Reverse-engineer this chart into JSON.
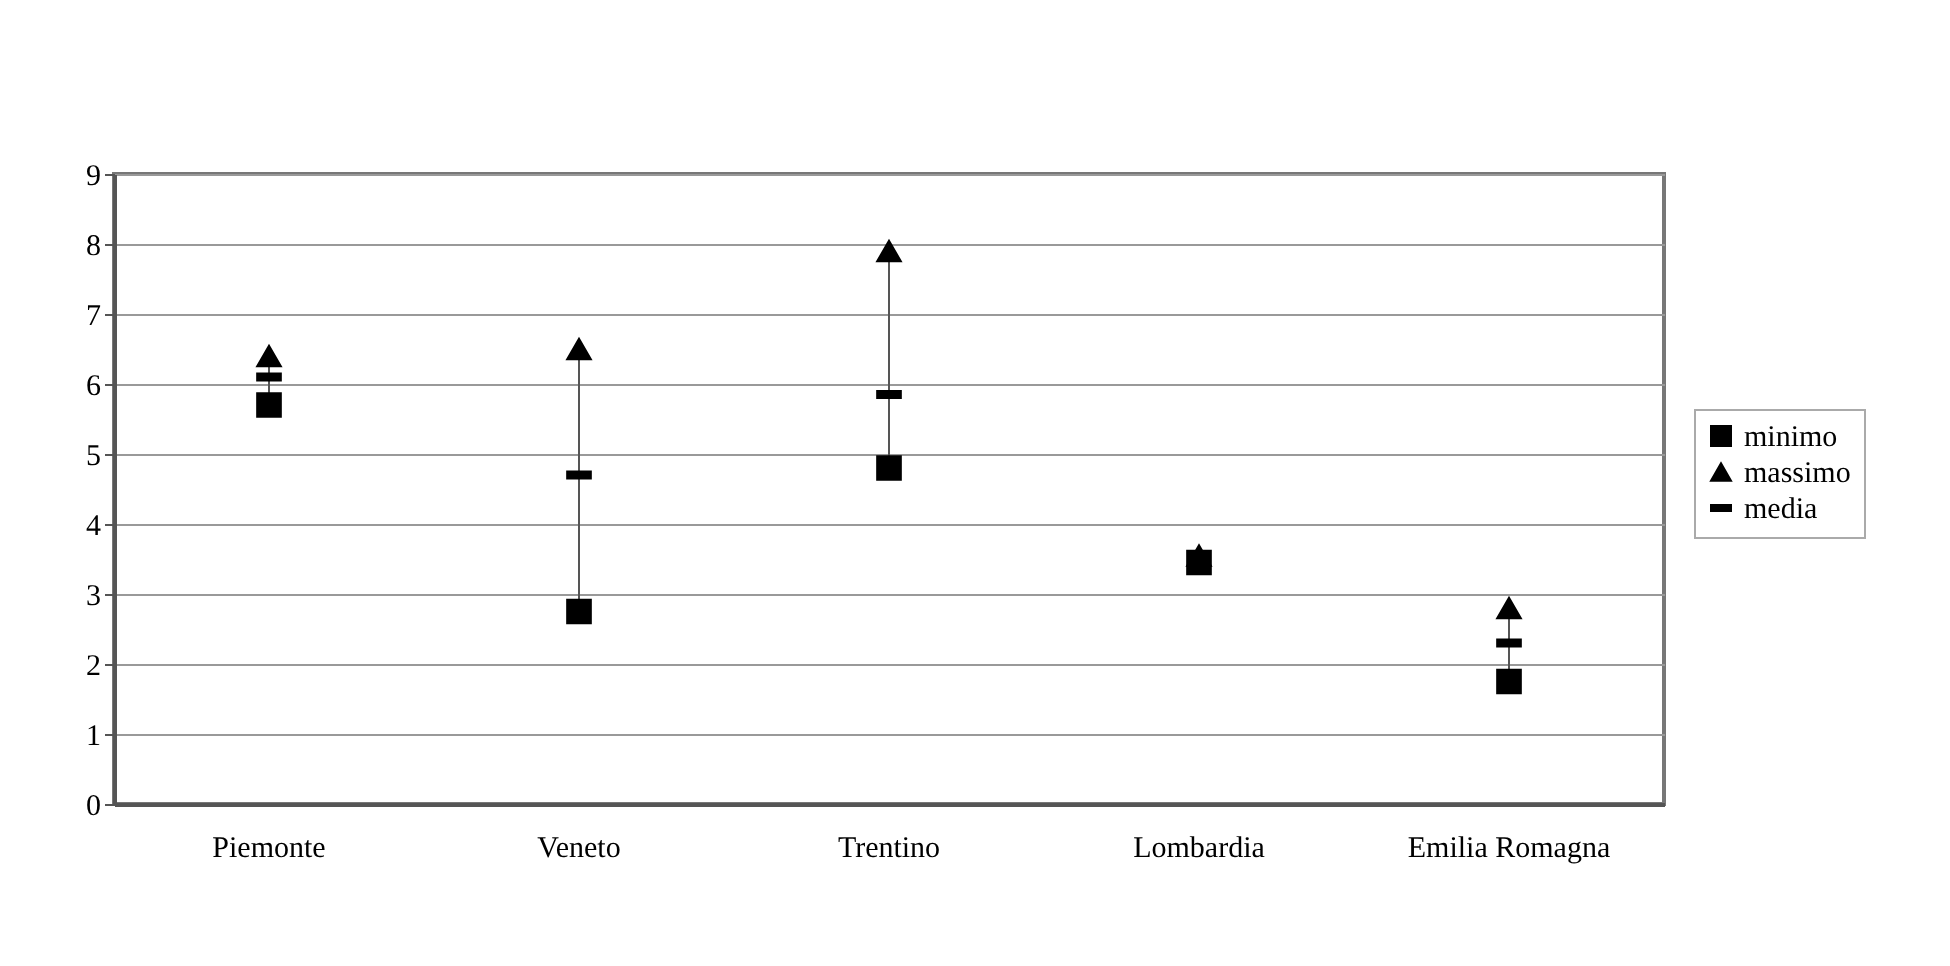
{
  "chart_data": {
    "type": "scatter",
    "categories": [
      "Piemonte",
      "Veneto",
      "Trentino",
      "Lombardia",
      "Emilia Romagna"
    ],
    "series": [
      {
        "name": "minimo",
        "color": "#000000",
        "marker": "square",
        "values": [
          5.7,
          2.75,
          4.8,
          3.45,
          1.75
        ]
      },
      {
        "name": "massimo",
        "color": "#000000",
        "marker": "triangle",
        "values": [
          6.4,
          6.5,
          7.9,
          3.55,
          2.8
        ]
      },
      {
        "name": "media",
        "color": "#000000",
        "values": [
          6.1,
          4.7,
          5.85,
          null,
          2.3
        ]
      }
    ],
    "ylim": [
      0,
      9
    ],
    "yticks": [
      0,
      1,
      2,
      3,
      4,
      5,
      6,
      7,
      8,
      9
    ],
    "grid": "y",
    "legend": "right"
  }
}
